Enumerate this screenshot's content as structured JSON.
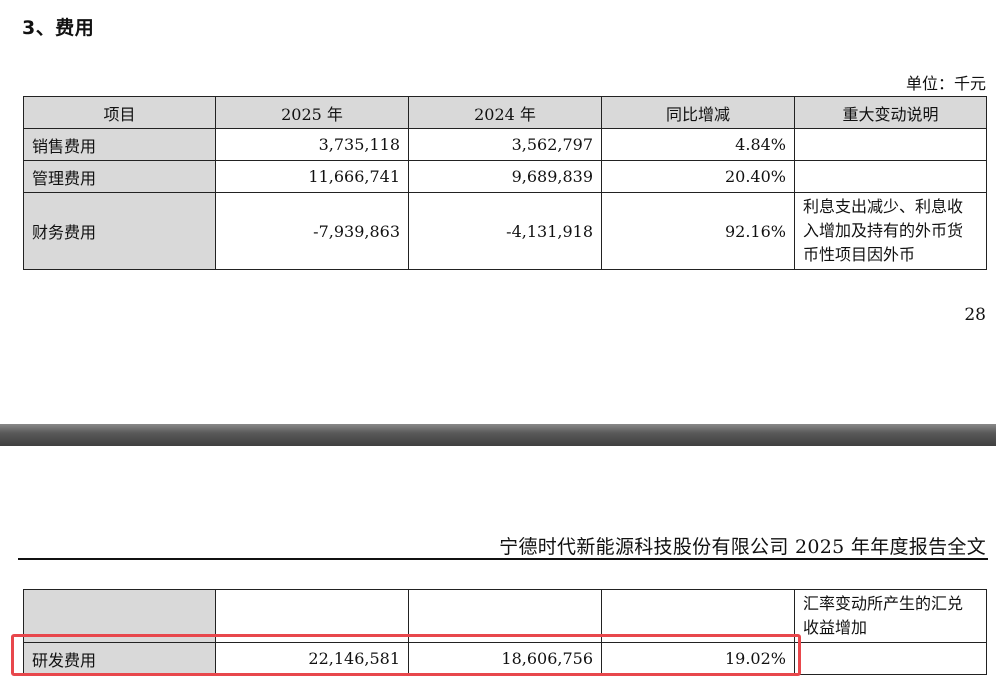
{
  "section": {
    "title": "3、费用"
  },
  "unit_note": "单位：千元",
  "table": {
    "headers": [
      "项目",
      "2025 年",
      "2024 年",
      "同比增减",
      "重大变动说明"
    ],
    "rows": [
      {
        "item": "销售费用",
        "y2025": "3,735,118",
        "y2024": "3,562,797",
        "change": "4.84%",
        "note": ""
      },
      {
        "item": "管理费用",
        "y2025": "11,666,741",
        "y2024": "9,689,839",
        "change": "20.40%",
        "note": ""
      },
      {
        "item": "财务费用",
        "y2025": "-7,939,863",
        "y2024": "-4,131,918",
        "change": "92.16%",
        "note": "利息支出减少、利息收入增加及持有的外币货币性项目因外币"
      }
    ],
    "continued_note": "汇率变动所产生的汇兑收益增加",
    "rd_row": {
      "item": "研发费用",
      "y2025": "22,146,581",
      "y2024": "18,606,756",
      "change": "19.02%",
      "note": ""
    }
  },
  "page_number": "28",
  "running_header": "宁德时代新能源科技股份有限公司 2025 年年度报告全文",
  "colors": {
    "header_fill": "#d9d9d9",
    "highlight_border": "#e8474c",
    "divider": "#4a4a4a"
  }
}
